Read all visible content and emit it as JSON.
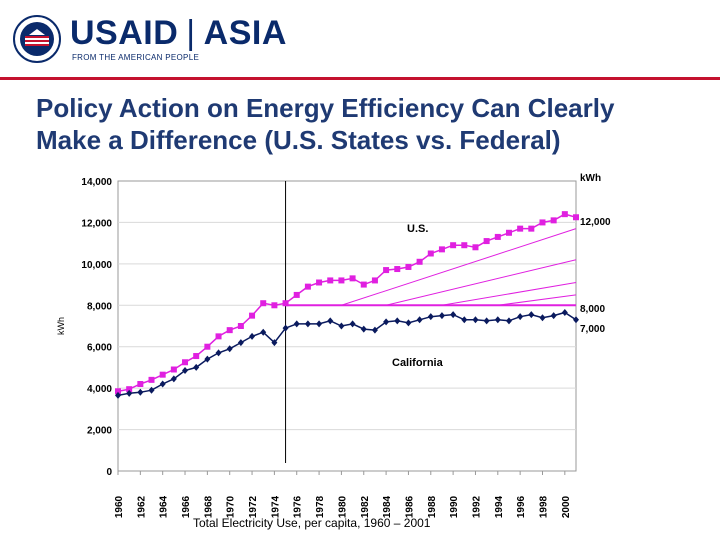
{
  "header": {
    "logo_text": "USAID",
    "separator": "|",
    "region": "ASIA",
    "tagline": "FROM THE AMERICAN PEOPLE",
    "seal_text": "USAID"
  },
  "title_line1": "Policy Action on Energy Efficiency Can Clearly",
  "title_line2": "Make a Difference (U.S. States vs. Federal)",
  "caption": "Total Electricity Use,  per capita, 1960 – 2001",
  "colors": {
    "us_series": "#e020e0",
    "california_series": "#0a1a5e",
    "brand_blue": "#0a2a6b",
    "brand_red": "#c4122f"
  },
  "chart_data": {
    "type": "line",
    "ylabel": "kWh",
    "y2label": "kWh",
    "ylim": [
      0,
      14000
    ],
    "yticks": [
      "0",
      "2,000",
      "4,000",
      "6,000",
      "8,000",
      "10,000",
      "12,000",
      "14,000"
    ],
    "xlim": [
      1960,
      2001
    ],
    "xticks": [
      "1960",
      "1962",
      "1964",
      "1966",
      "1968",
      "1970",
      "1972",
      "1974",
      "1976",
      "1978",
      "1980",
      "1982",
      "1984",
      "1986",
      "1988",
      "1990",
      "1992",
      "1994",
      "1996",
      "1998",
      "2000"
    ],
    "grid": true,
    "policy_line_year": 1975,
    "right_labels": [
      "12,000",
      "8,000",
      "7,000"
    ],
    "series_labels": [
      "U.S.",
      "California"
    ],
    "x": [
      1960,
      1961,
      1962,
      1963,
      1964,
      1965,
      1966,
      1967,
      1968,
      1969,
      1970,
      1971,
      1972,
      1973,
      1974,
      1975,
      1976,
      1977,
      1978,
      1979,
      1980,
      1981,
      1982,
      1983,
      1984,
      1985,
      1986,
      1987,
      1988,
      1989,
      1990,
      1991,
      1992,
      1993,
      1994,
      1995,
      1996,
      1997,
      1998,
      1999,
      2000,
      2001
    ],
    "series": [
      {
        "name": "U.S.",
        "values": [
          3850,
          3950,
          4200,
          4400,
          4650,
          4900,
          5250,
          5550,
          6000,
          6500,
          6800,
          7000,
          7500,
          8100,
          8000,
          8100,
          8500,
          8900,
          9100,
          9200,
          9200,
          9300,
          9000,
          9200,
          9700,
          9750,
          9850,
          10100,
          10500,
          10700,
          10900,
          10900,
          10800,
          11100,
          11300,
          11500,
          11700,
          11700,
          12000,
          12100,
          12400,
          12250
        ]
      },
      {
        "name": "California",
        "values": [
          3650,
          3750,
          3800,
          3900,
          4200,
          4450,
          4850,
          5000,
          5400,
          5700,
          5900,
          6200,
          6500,
          6700,
          6200,
          6900,
          7100,
          7100,
          7100,
          7250,
          7000,
          7100,
          6850,
          6800,
          7200,
          7250,
          7150,
          7300,
          7450,
          7500,
          7550,
          7300,
          7300,
          7250,
          7300,
          7250,
          7450,
          7550,
          7400,
          7500,
          7650,
          7300
        ]
      }
    ],
    "reference_line": {
      "value": 8000,
      "from": 1975,
      "to": 2001
    },
    "savings_hatch": [
      {
        "x1": 1980,
        "y1": 8000,
        "x2": 2001,
        "y2": 11700
      },
      {
        "x1": 1984,
        "y1": 8000,
        "x2": 2001,
        "y2": 10200
      },
      {
        "x1": 1989,
        "y1": 8000,
        "x2": 2001,
        "y2": 9100
      },
      {
        "x1": 1994,
        "y1": 8000,
        "x2": 2001,
        "y2": 8500
      }
    ]
  }
}
